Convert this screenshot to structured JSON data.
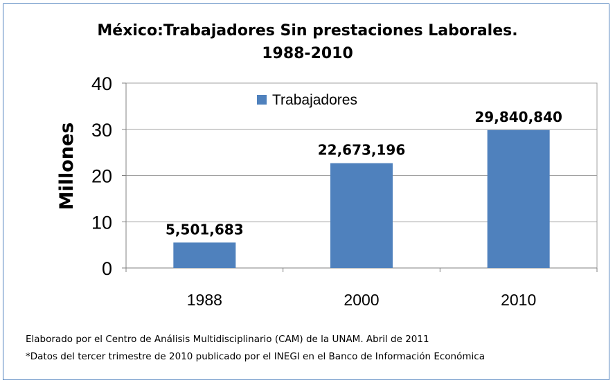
{
  "chart_data": {
    "type": "bar",
    "title_line1": "México:Trabajadores Sin prestaciones Laborales.",
    "title_line2": "1988-2010",
    "ylabel": "Millones",
    "xlabel": "",
    "categories": [
      "1988",
      "2000",
      "2010"
    ],
    "series": [
      {
        "name": "Trabajadores",
        "values": [
          5.501683,
          22.673196,
          29.84084
        ],
        "labels": [
          "5,501,683",
          "22,673,196",
          "29,840,840"
        ],
        "color": "#4f81bd"
      }
    ],
    "ylim": [
      0,
      40
    ],
    "yticks": [
      0,
      10,
      20,
      30,
      40
    ],
    "grid": true,
    "legend_position": "top-center"
  },
  "notes": {
    "line1": "Elaborado por el Centro de Análisis Multidisciplinario (CAM) de la  UNAM. Abril de 2011",
    "line2": "*Datos del tercer trimestre de 2010 publicado por el INEGI en el Banco de Información Económica"
  }
}
